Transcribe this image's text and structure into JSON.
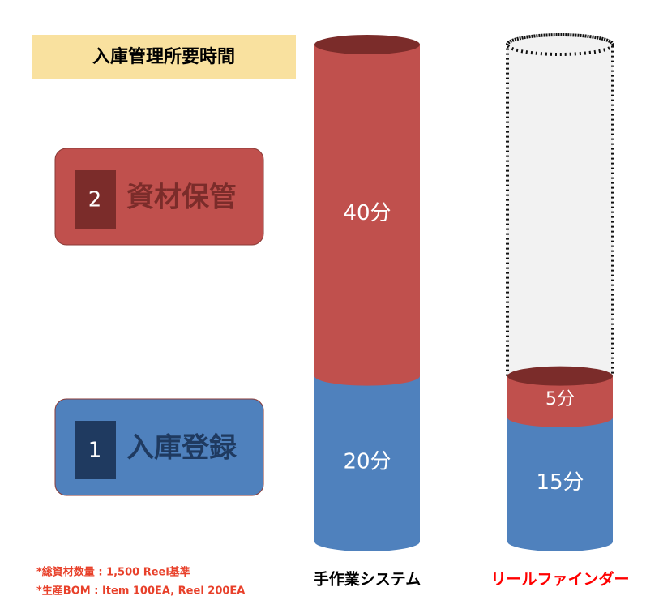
{
  "title": "入庫管理所要時間",
  "chart_data": {
    "type": "stacked_cylinder",
    "categories": [
      "手作業システム",
      "リールファインダー"
    ],
    "category_colors": [
      "#000000",
      "#ff0000"
    ],
    "series": [
      {
        "name": "入庫登録",
        "number": "1",
        "color": "#4f81bd",
        "badge_color": "#1f3a60",
        "text_color": "#1f3a60",
        "values": [
          20,
          15
        ],
        "value_labels": [
          "20分",
          "15分"
        ]
      },
      {
        "name": "資材保管",
        "number": "2",
        "color": "#c0504d",
        "badge_color": "#7b2c2a",
        "text_color": "#7b2c2a",
        "values": [
          40,
          5
        ],
        "value_labels": [
          "40分",
          "5分"
        ]
      }
    ]
  },
  "notes": [
    "*総資材数量 : 1,500 Reel基準",
    "*生産BOM : Item 100EA, Reel 200EA"
  ]
}
